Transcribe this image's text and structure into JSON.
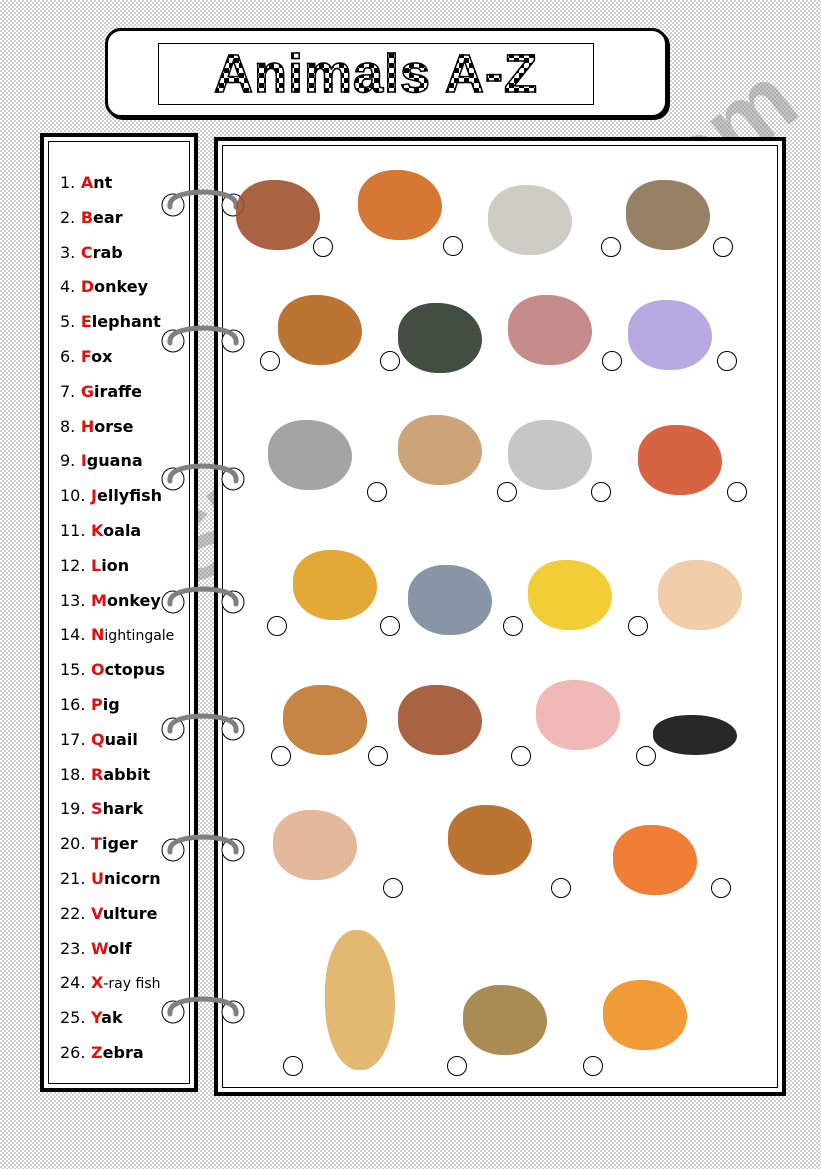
{
  "title": "Animals A-Z",
  "watermark": "ESLprintables.com",
  "colors": {
    "initial_letter": "#e01010",
    "text": "#000000",
    "ring": "#808080"
  },
  "word_list": [
    {
      "num": "1.",
      "first": "A",
      "rest": "nt"
    },
    {
      "num": "2.",
      "first": "B",
      "rest": "ear"
    },
    {
      "num": "3.",
      "first": "C",
      "rest": "rab"
    },
    {
      "num": "4.",
      "first": "D",
      "rest": "onkey"
    },
    {
      "num": "5.",
      "first": "E",
      "rest": "lephant"
    },
    {
      "num": "6.",
      "first": "F",
      "rest": "ox"
    },
    {
      "num": "7.",
      "first": "G",
      "rest": "iraffe"
    },
    {
      "num": "8.",
      "first": "H",
      "rest": "orse"
    },
    {
      "num": "9.",
      "first": "I",
      "rest": "guana"
    },
    {
      "num": "10.",
      "first": "J",
      "rest": "ellyfish"
    },
    {
      "num": "11.",
      "first": "K",
      "rest": "oala"
    },
    {
      "num": "12.",
      "first": "L",
      "rest": "ion"
    },
    {
      "num": "13.",
      "first": "M",
      "rest": "onkey"
    },
    {
      "num": "14.",
      "first": "N",
      "rest": "ightingale"
    },
    {
      "num": "15.",
      "first": "O",
      "rest": "ctopus"
    },
    {
      "num": "16.",
      "first": "P",
      "rest": "ig"
    },
    {
      "num": "17.",
      "first": "Q",
      "rest": "uail"
    },
    {
      "num": "18.",
      "first": "R",
      "rest": "abbit"
    },
    {
      "num": "19.",
      "first": "S",
      "rest": "hark"
    },
    {
      "num": "20.",
      "first": "T",
      "rest": "iger"
    },
    {
      "num": "21.",
      "first": "U",
      "rest": "nicorn"
    },
    {
      "num": "22.",
      "first": "V",
      "rest": "ulture"
    },
    {
      "num": "23.",
      "first": "W",
      "rest": "olf"
    },
    {
      "num": "24.",
      "first": "X",
      "rest": "-ray fish"
    },
    {
      "num": "25.",
      "first": "Y",
      "rest": "ak"
    },
    {
      "num": "26.",
      "first": "Z",
      "rest": "ebra"
    }
  ],
  "pictures": [
    {
      "icon": "quail-picture",
      "color": "#a0522d"
    },
    {
      "icon": "monkey-picture",
      "color": "#d2691e"
    },
    {
      "icon": "iguana-picture",
      "color": "#c8c8c0"
    },
    {
      "icon": "vulture-picture",
      "color": "#8b7355"
    },
    {
      "icon": "donkey-picture",
      "color": "#b5651d"
    },
    {
      "icon": "yak-picture",
      "color": "#2f3b2f"
    },
    {
      "icon": "koala-picture",
      "color": "#c08080"
    },
    {
      "icon": "x-ray-fish-picture",
      "color": "#b0a0e0"
    },
    {
      "icon": "elephant-picture",
      "color": "#9a9a9a"
    },
    {
      "icon": "zebra-picture",
      "color": "#c89a6a"
    },
    {
      "icon": "jellyfish-picture",
      "color": "#c0c0c0"
    },
    {
      "icon": "fox-picture",
      "color": "#d2522d"
    },
    {
      "icon": "lion-picture",
      "color": "#e0a020"
    },
    {
      "icon": "shark-picture",
      "color": "#7a8a9a"
    },
    {
      "icon": "unicorn-picture",
      "color": "#f0c820"
    },
    {
      "icon": "octopus-picture",
      "color": "#f0c8a0"
    },
    {
      "icon": "wolf-picture",
      "color": "#c07830"
    },
    {
      "icon": "bear-picture",
      "color": "#a0522d"
    },
    {
      "icon": "pig-picture",
      "color": "#f0b0b0"
    },
    {
      "icon": "ant-picture",
      "color": "#111111"
    },
    {
      "icon": "rabbit-picture",
      "color": "#e0b090"
    },
    {
      "icon": "horse-picture",
      "color": "#b5651d"
    },
    {
      "icon": "crab-picture",
      "color": "#f07020"
    },
    {
      "icon": "giraffe-picture",
      "color": "#e0b060"
    },
    {
      "icon": "nightingale-picture",
      "color": "#a08040"
    },
    {
      "icon": "tiger-picture",
      "color": "#f09020"
    }
  ]
}
